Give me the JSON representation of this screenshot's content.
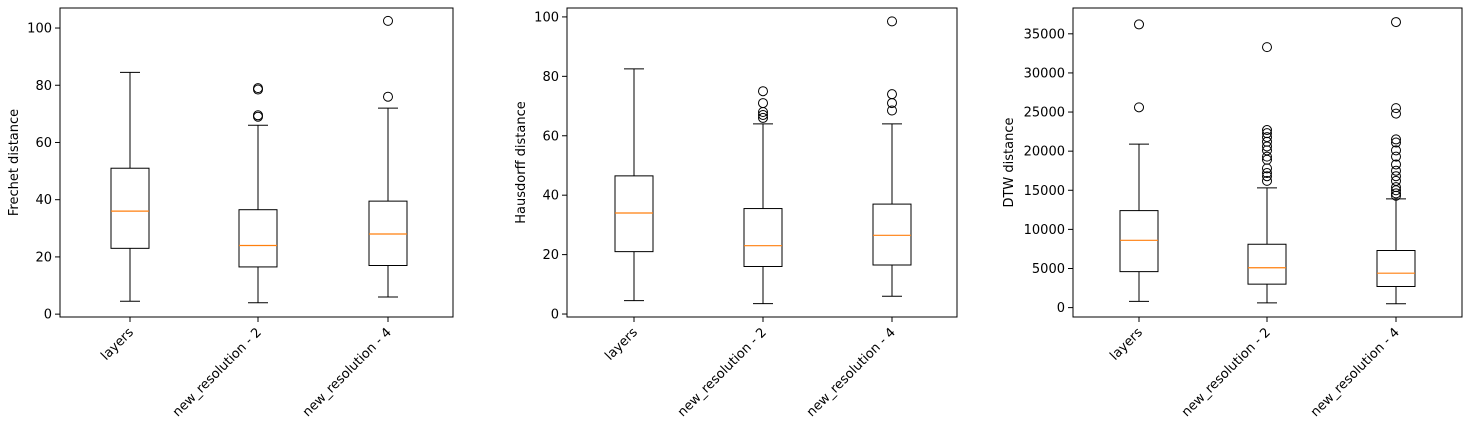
{
  "chart_data": [
    {
      "type": "box",
      "title": "",
      "xlabel": "",
      "ylabel": "Frechet distance",
      "categories": [
        "layers",
        "new_resolution - 2",
        "new_resolution - 4"
      ],
      "ylim": [
        -1,
        107
      ],
      "yticks": [
        0,
        20,
        40,
        60,
        80,
        100
      ],
      "boxes": [
        {
          "whisker_low": 4.5,
          "q1": 23,
          "median": 36,
          "q3": 51,
          "whisker_high": 84.5,
          "outliers": []
        },
        {
          "whisker_low": 4,
          "q1": 16.5,
          "median": 24,
          "q3": 36.5,
          "whisker_high": 66,
          "outliers": [
            69,
            69.5,
            78.5,
            79
          ]
        },
        {
          "whisker_low": 6,
          "q1": 17,
          "median": 28,
          "q3": 39.5,
          "whisker_high": 72,
          "outliers": [
            76,
            102.5
          ]
        }
      ]
    },
    {
      "type": "box",
      "title": "",
      "xlabel": "",
      "ylabel": "Hausdorff distance",
      "categories": [
        "layers",
        "new_resolution - 2",
        "new_resolution - 4"
      ],
      "ylim": [
        -1,
        103
      ],
      "yticks": [
        0,
        20,
        40,
        60,
        80,
        100
      ],
      "boxes": [
        {
          "whisker_low": 4.5,
          "q1": 21,
          "median": 34,
          "q3": 46.5,
          "whisker_high": 82.5,
          "outliers": []
        },
        {
          "whisker_low": 3.5,
          "q1": 16,
          "median": 23,
          "q3": 35.5,
          "whisker_high": 64,
          "outliers": [
            66,
            67,
            68,
            71,
            75
          ]
        },
        {
          "whisker_low": 6,
          "q1": 16.5,
          "median": 26.5,
          "q3": 37,
          "whisker_high": 64,
          "outliers": [
            68.5,
            71,
            74,
            98.5
          ]
        }
      ]
    },
    {
      "type": "box",
      "title": "",
      "xlabel": "",
      "ylabel": "DTW distance",
      "categories": [
        "layers",
        "new_resolution - 2",
        "new_resolution - 4"
      ],
      "ylim": [
        -1200,
        38300
      ],
      "yticks": [
        0,
        5000,
        10000,
        15000,
        20000,
        25000,
        30000,
        35000
      ],
      "boxes": [
        {
          "whisker_low": 800,
          "q1": 4600,
          "median": 8600,
          "q3": 12400,
          "whisker_high": 20900,
          "outliers": [
            25600,
            36200
          ]
        },
        {
          "whisker_low": 600,
          "q1": 3000,
          "median": 5100,
          "q3": 8100,
          "whisker_high": 15300,
          "outliers": [
            16200,
            16800,
            17200,
            17800,
            18900,
            19300,
            20100,
            20600,
            21200,
            21800,
            22300,
            22700,
            33300
          ]
        },
        {
          "whisker_low": 500,
          "q1": 2700,
          "median": 4400,
          "q3": 7300,
          "whisker_high": 13900,
          "outliers": [
            14300,
            14600,
            15000,
            15400,
            16200,
            16800,
            17500,
            18300,
            19300,
            20100,
            21100,
            21500,
            24800,
            25500,
            36500
          ]
        }
      ]
    }
  ],
  "colors": {
    "box": "#000000",
    "median": "#ff7f0e",
    "background": "#ffffff"
  }
}
